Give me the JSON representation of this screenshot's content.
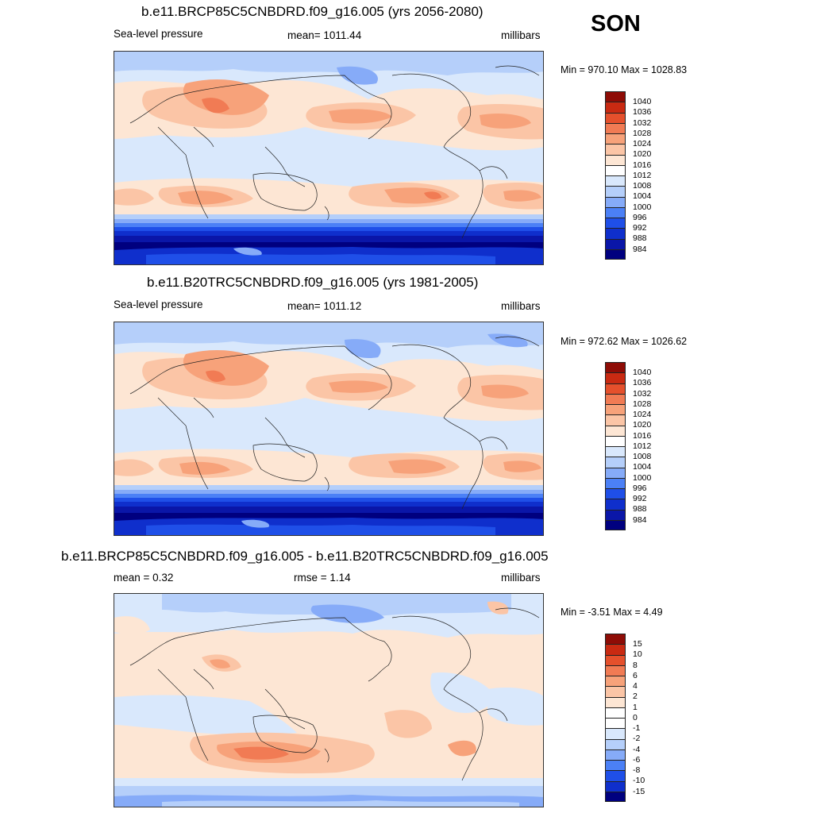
{
  "season": "SON",
  "colors": {
    "abs": [
      "#00007f",
      "#0a16a8",
      "#0f2fcc",
      "#1f4fe8",
      "#4b80f6",
      "#86abf8",
      "#b5cffa",
      "#d9e8fc",
      "#fde6d4",
      "#fbc5a6",
      "#f7a27a",
      "#f17b54",
      "#e5502c",
      "#c92a12",
      "#8e0c06"
    ],
    "diff": [
      "#00007f",
      "#0a16a8",
      "#0f2fcc",
      "#1f4fe8",
      "#4b80f6",
      "#86abf8",
      "#b5cffa",
      "#d9e8fc",
      "#fde6d4",
      "#fbc5a6",
      "#f7a27a",
      "#f17b54",
      "#e5502c",
      "#c92a12",
      "#8e0c06"
    ]
  },
  "panels": [
    {
      "title": "b.e11.BRCP85C5CNBDRD.f09_g16.005 (yrs 2056-2080)",
      "left_label": "Sea-level pressure",
      "center_label": "mean= 1011.44",
      "units": "millibars",
      "minmax": "Min = 970.10 Max = 1028.83",
      "levels": [
        "1040",
        "1036",
        "1032",
        "1028",
        "1024",
        "1020",
        "1016",
        "1012",
        "1008",
        "1004",
        "1000",
        "996",
        "992",
        "988",
        "984"
      ]
    },
    {
      "title": "b.e11.B20TRC5CNBDRD.f09_g16.005 (yrs 1981-2005)",
      "left_label": "Sea-level pressure",
      "center_label": "mean= 1011.12",
      "units": "millibars",
      "minmax": "Min = 972.62 Max = 1026.62",
      "levels": [
        "1040",
        "1036",
        "1032",
        "1028",
        "1024",
        "1020",
        "1016",
        "1012",
        "1008",
        "1004",
        "1000",
        "996",
        "992",
        "988",
        "984"
      ]
    },
    {
      "title": "b.e11.BRCP85C5CNBDRD.f09_g16.005 - b.e11.B20TRC5CNBDRD.f09_g16.005",
      "left_label": "mean =   0.32",
      "center_label": "rmse =   1.14",
      "units": "millibars",
      "minmax": "Min =  -3.51 Max =   4.49",
      "levels": [
        "15",
        "10",
        "8",
        "6",
        "4",
        "2",
        "1",
        "0",
        "-1",
        "-2",
        "-4",
        "-6",
        "-8",
        "-10",
        "-15"
      ]
    }
  ]
}
